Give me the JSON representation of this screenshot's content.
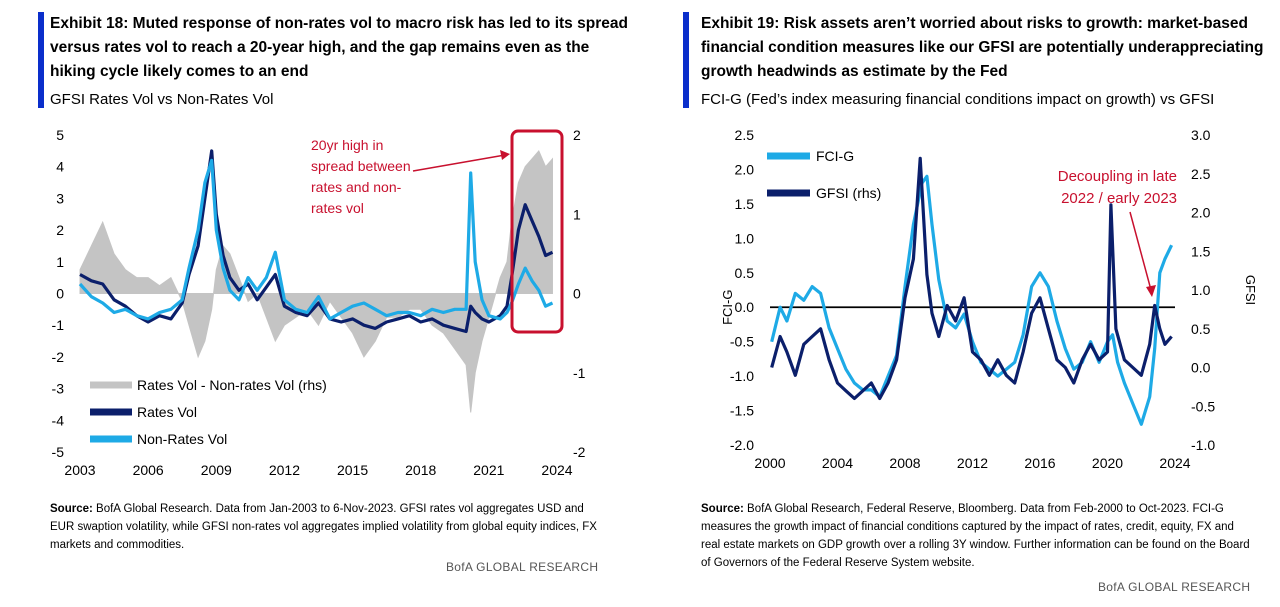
{
  "exhibit18": {
    "title": "Exhibit 18: Muted response of non-rates vol to macro risk has led to its spread versus rates vol to reach a 20-year high, and the gap remains even as the hiking cycle likely comes to an end",
    "subtitle": "GFSI Rates Vol vs Non-Rates  Vol",
    "annotation": "20yr high in spread between rates and non-rates vol",
    "source_label": "Source:",
    "source_text": "BofA Global Research. Data from Jan-2003 to 6-Nov-2023. GFSI rates vol aggregates USD and EUR swaption volatility, while GFSI non-rates vol aggregates implied volatility from global equity indices, FX markets and commodities.",
    "brand": "BofA GLOBAL RESEARCH"
  },
  "exhibit19": {
    "title": "Exhibit 19: Risk assets aren’t worried about risks to growth: market-based financial condition measures like our GFSI are potentially underappreciating  growth headwinds as estimate by the Fed",
    "subtitle": "FCI-G (Fed’s index measuring  financial  conditions  impact  on growth) vs GFSI",
    "annotation": "Decoupling  in late 2022 / early 2023",
    "source_label": "Source:",
    "source_text": "BofA Global Research, Federal Reserve, Bloomberg. Data from Feb-2000 to Oct-2023. FCI-G measures the growth impact of financial conditions captured by the impact of rates, credit, equity, FX and real estate markets on GDP growth over a rolling 3Y window. Further information can be found on the Board of Governors of the Federal Reserve System website.",
    "brand": "BofA GLOBAL RESEARCH"
  },
  "colors": {
    "navy": "#0b1f6b",
    "sky": "#1eaae6",
    "gray": "#c4c4c4",
    "red": "#c8102e",
    "accent": "#0a2ecb"
  },
  "chart_data": [
    {
      "type": "line",
      "xlim": [
        2003,
        2024
      ],
      "ylim": [
        -5,
        5
      ],
      "y2lim": [
        -2,
        2
      ],
      "xticks": [
        "2003",
        "2006",
        "2009",
        "2012",
        "2015",
        "2018",
        "2021",
        "2024"
      ],
      "yticks": [
        "5",
        "4",
        "3",
        "2",
        "1",
        "0",
        "-1",
        "-2",
        "-3",
        "-4",
        "-5"
      ],
      "y2ticks": [
        "2",
        "1",
        "0",
        "-1",
        "-2"
      ],
      "legend_position": "bottom-left",
      "series": [
        {
          "name": "Rates Vol - Non-rates Vol (rhs)",
          "axis": "right",
          "kind": "area",
          "x": [
            2003.0,
            2003.5,
            2004.0,
            2004.5,
            2005.0,
            2005.5,
            2006.0,
            2006.5,
            2007.0,
            2007.5,
            2007.8,
            2008.2,
            2008.5,
            2008.8,
            2009.0,
            2009.3,
            2009.6,
            2010.0,
            2010.4,
            2010.8,
            2011.2,
            2011.6,
            2012.0,
            2012.5,
            2013.0,
            2013.5,
            2014.0,
            2014.5,
            2015.0,
            2015.5,
            2016.0,
            2016.5,
            2017.0,
            2017.5,
            2018.0,
            2018.5,
            2019.0,
            2019.5,
            2020.0,
            2020.2,
            2020.4,
            2020.7,
            2021.0,
            2021.5,
            2021.8,
            2022.0,
            2022.3,
            2022.6,
            2022.9,
            2023.2,
            2023.5,
            2023.8
          ],
          "y": [
            0.3,
            0.6,
            0.9,
            0.5,
            0.3,
            0.2,
            0.2,
            0.1,
            0.2,
            -0.1,
            -0.4,
            -0.8,
            -0.6,
            -0.2,
            0.3,
            0.6,
            0.5,
            0.2,
            -0.1,
            0.0,
            -0.3,
            -0.6,
            -0.4,
            -0.3,
            -0.2,
            -0.4,
            -0.1,
            -0.3,
            -0.5,
            -0.8,
            -0.6,
            -0.3,
            -0.3,
            -0.2,
            -0.2,
            -0.4,
            -0.5,
            -0.7,
            -0.9,
            -1.5,
            -1.0,
            -0.6,
            -0.3,
            0.2,
            0.4,
            0.9,
            1.4,
            1.6,
            1.7,
            1.8,
            1.6,
            1.7
          ]
        },
        {
          "name": "Rates Vol",
          "axis": "left",
          "kind": "line",
          "x": [
            2003.0,
            2003.5,
            2004.0,
            2004.5,
            2005.0,
            2005.5,
            2006.0,
            2006.5,
            2007.0,
            2007.5,
            2007.8,
            2008.2,
            2008.5,
            2008.8,
            2009.0,
            2009.3,
            2009.6,
            2010.0,
            2010.4,
            2010.8,
            2011.2,
            2011.6,
            2012.0,
            2012.5,
            2013.0,
            2013.5,
            2014.0,
            2014.5,
            2015.0,
            2015.5,
            2016.0,
            2016.5,
            2017.0,
            2017.5,
            2018.0,
            2018.5,
            2019.0,
            2019.5,
            2020.0,
            2020.2,
            2020.4,
            2020.7,
            2021.0,
            2021.5,
            2021.8,
            2022.0,
            2022.3,
            2022.6,
            2022.9,
            2023.2,
            2023.5,
            2023.8
          ],
          "y": [
            0.6,
            0.4,
            0.3,
            -0.2,
            -0.4,
            -0.7,
            -0.9,
            -0.7,
            -0.8,
            -0.3,
            0.6,
            1.5,
            3.0,
            4.5,
            2.5,
            1.2,
            0.5,
            0.1,
            0.3,
            -0.2,
            0.2,
            0.6,
            -0.4,
            -0.6,
            -0.7,
            -0.3,
            -0.8,
            -0.9,
            -0.8,
            -1.0,
            -1.1,
            -0.9,
            -0.8,
            -0.7,
            -0.9,
            -0.8,
            -1.0,
            -1.1,
            -1.2,
            -0.4,
            -0.6,
            -0.8,
            -0.9,
            -0.7,
            -0.4,
            0.5,
            2.0,
            2.8,
            2.3,
            1.8,
            1.2,
            1.3
          ]
        },
        {
          "name": "Non-Rates Vol",
          "axis": "left",
          "kind": "line",
          "x": [
            2003.0,
            2003.5,
            2004.0,
            2004.5,
            2005.0,
            2005.5,
            2006.0,
            2006.5,
            2007.0,
            2007.5,
            2007.8,
            2008.2,
            2008.5,
            2008.8,
            2009.0,
            2009.3,
            2009.6,
            2010.0,
            2010.4,
            2010.8,
            2011.2,
            2011.6,
            2012.0,
            2012.5,
            2013.0,
            2013.5,
            2014.0,
            2014.5,
            2015.0,
            2015.5,
            2016.0,
            2016.5,
            2017.0,
            2017.5,
            2018.0,
            2018.5,
            2019.0,
            2019.5,
            2020.0,
            2020.2,
            2020.4,
            2020.7,
            2021.0,
            2021.5,
            2021.8,
            2022.0,
            2022.3,
            2022.6,
            2022.9,
            2023.2,
            2023.5,
            2023.8
          ],
          "y": [
            0.3,
            -0.1,
            -0.3,
            -0.6,
            -0.5,
            -0.7,
            -0.8,
            -0.6,
            -0.5,
            -0.2,
            0.8,
            2.0,
            3.5,
            4.2,
            2.0,
            0.8,
            0.1,
            -0.2,
            0.5,
            0.1,
            0.5,
            1.3,
            -0.2,
            -0.5,
            -0.6,
            -0.1,
            -0.8,
            -0.6,
            -0.4,
            -0.3,
            -0.5,
            -0.7,
            -0.6,
            -0.6,
            -0.7,
            -0.5,
            -0.6,
            -0.5,
            -0.5,
            3.8,
            1.0,
            -0.2,
            -0.7,
            -0.8,
            -0.6,
            -0.3,
            0.3,
            0.8,
            0.4,
            0.1,
            -0.4,
            -0.3
          ]
        }
      ]
    },
    {
      "type": "line",
      "xlim": [
        2000,
        2024
      ],
      "ylim": [
        -2.0,
        2.5
      ],
      "y2lim": [
        -1.0,
        3.0
      ],
      "xticks": [
        "2000",
        "2004",
        "2008",
        "2012",
        "2016",
        "2020",
        "2024"
      ],
      "yticks": [
        "2.5",
        "2.0",
        "1.5",
        "1.0",
        "0.5",
        "0.0",
        "-0.5",
        "-1.0",
        "-1.5",
        "-2.0"
      ],
      "y2ticks": [
        "3.0",
        "2.5",
        "2.0",
        "1.5",
        "1.0",
        "0.5",
        "0.0",
        "-0.5",
        "-1.0"
      ],
      "ylabel": "FCI-G",
      "y2label": "GFSI",
      "legend_position": "top-left",
      "series": [
        {
          "name": "FCI-G",
          "axis": "left",
          "x": [
            2000.1,
            2000.6,
            2001.0,
            2001.5,
            2002.0,
            2002.5,
            2003.0,
            2003.5,
            2004.0,
            2004.5,
            2005.0,
            2005.5,
            2006.0,
            2006.5,
            2007.0,
            2007.5,
            2008.0,
            2008.5,
            2009.0,
            2009.3,
            2009.6,
            2010.0,
            2010.5,
            2011.0,
            2011.5,
            2012.0,
            2012.5,
            2013.0,
            2013.5,
            2014.0,
            2014.5,
            2015.0,
            2015.5,
            2016.0,
            2016.5,
            2017.0,
            2017.5,
            2018.0,
            2018.5,
            2019.0,
            2019.5,
            2020.0,
            2020.3,
            2020.6,
            2021.0,
            2021.5,
            2022.0,
            2022.5,
            2022.8,
            2023.1,
            2023.4,
            2023.8
          ],
          "y": [
            -0.5,
            0.0,
            -0.2,
            0.2,
            0.1,
            0.3,
            0.2,
            -0.3,
            -0.6,
            -0.9,
            -1.1,
            -1.2,
            -1.2,
            -1.3,
            -1.0,
            -0.7,
            0.3,
            1.2,
            1.8,
            1.9,
            1.2,
            0.4,
            -0.2,
            -0.3,
            -0.1,
            -0.5,
            -0.8,
            -0.9,
            -1.0,
            -0.9,
            -0.8,
            -0.4,
            0.3,
            0.5,
            0.3,
            -0.2,
            -0.6,
            -0.9,
            -0.8,
            -0.5,
            -0.8,
            -0.5,
            -0.4,
            -0.8,
            -1.1,
            -1.4,
            -1.7,
            -1.3,
            -0.6,
            0.5,
            0.7,
            0.9
          ]
        },
        {
          "name": "GFSI (rhs)",
          "axis": "right",
          "x": [
            2000.1,
            2000.6,
            2001.0,
            2001.5,
            2002.0,
            2002.5,
            2003.0,
            2003.5,
            2004.0,
            2004.5,
            2005.0,
            2005.5,
            2006.0,
            2006.5,
            2007.0,
            2007.5,
            2008.0,
            2008.5,
            2008.9,
            2009.3,
            2009.6,
            2010.0,
            2010.5,
            2011.0,
            2011.5,
            2012.0,
            2012.5,
            2013.0,
            2013.5,
            2014.0,
            2014.5,
            2015.0,
            2015.5,
            2016.0,
            2016.5,
            2017.0,
            2017.5,
            2018.0,
            2018.5,
            2019.0,
            2019.5,
            2020.0,
            2020.2,
            2020.5,
            2021.0,
            2021.5,
            2022.0,
            2022.5,
            2022.8,
            2023.1,
            2023.4,
            2023.8
          ],
          "y": [
            0.0,
            0.4,
            0.2,
            -0.1,
            0.3,
            0.4,
            0.5,
            0.1,
            -0.2,
            -0.3,
            -0.4,
            -0.3,
            -0.2,
            -0.4,
            -0.2,
            0.1,
            0.9,
            1.4,
            2.7,
            1.2,
            0.7,
            0.4,
            0.8,
            0.6,
            0.9,
            0.2,
            0.1,
            -0.1,
            0.1,
            -0.1,
            -0.2,
            0.2,
            0.7,
            0.9,
            0.5,
            0.1,
            0.0,
            -0.2,
            0.1,
            0.3,
            0.1,
            0.2,
            2.1,
            0.5,
            0.1,
            0.0,
            -0.1,
            0.3,
            0.8,
            0.5,
            0.3,
            0.4
          ]
        }
      ]
    }
  ]
}
